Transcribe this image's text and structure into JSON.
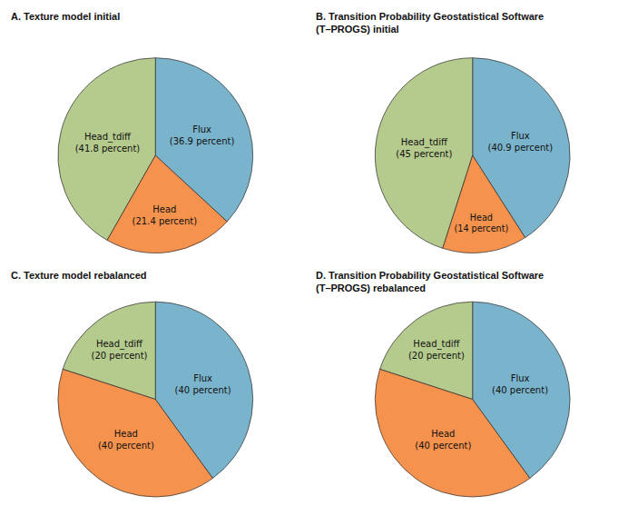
{
  "chart_data": [
    {
      "type": "pie",
      "title": "A. Texture model initial",
      "categories": [
        "Flux",
        "Head_tdiff",
        "Head"
      ],
      "values": [
        36.9,
        41.8,
        21.4
      ],
      "value_labels": [
        "(36.9 percent)",
        "(41.8 percent)",
        "(21.4 percent)"
      ],
      "colors": [
        "#7ab4cc",
        "#b5ca8d",
        "#f5924e"
      ],
      "data_labels": true,
      "legend": false
    },
    {
      "type": "pie",
      "title": "B. Transition Probability Geostatistical Software\n(T–PROGS) initial",
      "categories": [
        "Flux",
        "Head_tdiff",
        "Head"
      ],
      "values": [
        40.9,
        45.0,
        14.0
      ],
      "value_labels": [
        "(40.9 percent)",
        "(45 percent)",
        "(14 percent)"
      ],
      "colors": [
        "#7ab4cc",
        "#b5ca8d",
        "#f5924e"
      ],
      "data_labels": true,
      "legend": false
    },
    {
      "type": "pie",
      "title": "C. Texture model rebalanced",
      "categories": [
        "Flux",
        "Head_tdiff",
        "Head"
      ],
      "values": [
        40.0,
        20.0,
        40.0
      ],
      "value_labels": [
        "(40 percent)",
        "(20 percent)",
        "(40 percent)"
      ],
      "colors": [
        "#7ab4cc",
        "#b5ca8d",
        "#f5924e"
      ],
      "data_labels": true,
      "legend": false
    },
    {
      "type": "pie",
      "title": "D. Transition Probability Geostatistical Software\n(T–PROGS) rebalanced",
      "categories": [
        "Flux",
        "Head_tdiff",
        "Head"
      ],
      "values": [
        40.0,
        20.0,
        40.0
      ],
      "value_labels": [
        "(40 percent)",
        "(20 percent)",
        "(40 percent)"
      ],
      "colors": [
        "#7ab4cc",
        "#b5ca8d",
        "#f5924e"
      ],
      "data_labels": true,
      "legend": false
    }
  ]
}
